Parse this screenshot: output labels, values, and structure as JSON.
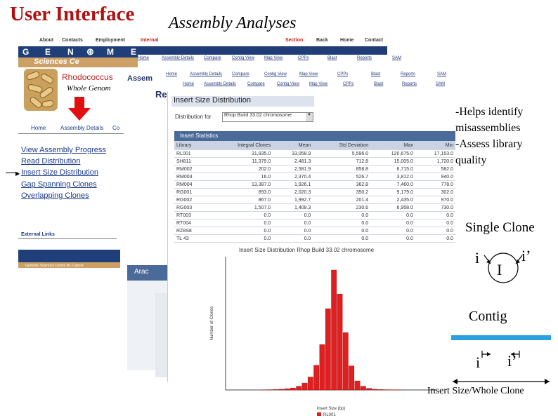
{
  "slide": {
    "title": "User Interface",
    "subtitle": "Assembly Analyses"
  },
  "back_site": {
    "top_nav": [
      "About",
      "Contacts",
      "Employment",
      "Internal",
      "Section:",
      "Back",
      "Home",
      "Contact"
    ],
    "logo_letters": [
      "G",
      "E",
      "N",
      "M",
      "E"
    ],
    "logo_sub": "Sciences  Ce",
    "organism": "Rhodococcus",
    "whole_genome": "Whole Genom",
    "sub_nav": [
      "Home",
      "Assembly Details",
      "Co"
    ],
    "links": [
      "View Assembly Progress",
      "Read Distribution",
      "Insert Size Distribution",
      "Gap Spanning Clones",
      "Overlapping Clones"
    ],
    "external_links": "External Links",
    "footer_text": "Genome Sciences Centre  BC Cancer",
    "mid_nav1": [
      "Home",
      "Assembly Details",
      "Compare",
      "Contig View",
      "Map View",
      "CPPs",
      "Blast",
      "Reports",
      "SAM"
    ],
    "mid_nav2": [
      "Home",
      "Assembly Details",
      "Compare",
      "Contig View",
      "Map View",
      "CPPs",
      "Blast",
      "Reports",
      "SAM"
    ],
    "mid_nav3": [
      "Home",
      "Assembly Details",
      "Compare",
      "Contig View",
      "Map View",
      "CPPs",
      "Blast",
      "Reports",
      "SAM"
    ],
    "assem_label": "Assem",
    "re_label": "Re",
    "lower_tab": "Arac"
  },
  "insert_size": {
    "heading": "Insert Size Distribution",
    "dist_label": "Distribution for",
    "dist_value": "Rhop Build 33.02 chromosome",
    "stats_heading": "Insert Statistics",
    "columns": [
      "Library",
      "Integral Clones",
      "Mean",
      "Std Deviation",
      "Max",
      "Min"
    ],
    "rows": [
      [
        "RL001",
        "31,935.0",
        "33,058.9",
        "5,596.0",
        "120,675.0",
        "17,153.0"
      ],
      [
        "SH811",
        "11,379.0",
        "2,481.3",
        "712.8",
        "15,005.0",
        "1,720.0"
      ],
      [
        "RM002",
        "202.0",
        "2,581.9",
        "858.8",
        "6,715.0",
        "582.0"
      ],
      [
        "RM003",
        "16.0",
        "2,370.4",
        "526.7",
        "3,812.0",
        "940.0"
      ],
      [
        "RM004",
        "13,387.0",
        "1,926.1",
        "362.8",
        "7,460.0",
        "778.0"
      ],
      [
        "RG001",
        "893.0",
        "2,020.3",
        "350.2",
        "9,179.0",
        "302.0"
      ],
      [
        "RG002",
        "867.0",
        "1,992.7",
        "201.4",
        "2,435.0",
        "970.0"
      ],
      [
        "RG003",
        "1,507.0",
        "1,408.3",
        "230.6",
        "6,958.0",
        "730.0"
      ],
      [
        "RT003",
        "0.0",
        "0.0",
        "0.0",
        "0.0",
        "0.0"
      ],
      [
        "RT004",
        "0.0",
        "0.0",
        "0.0",
        "0.0",
        "0.0"
      ],
      [
        "RZ8S8",
        "0.0",
        "0.0",
        "0.0",
        "0.0",
        "0.0"
      ],
      [
        "TL 43",
        "0.0",
        "0.0",
        "0.0",
        "0.0",
        "0.0"
      ]
    ]
  },
  "chart_data": {
    "type": "bar",
    "title": "Insert Size Distribution Rhop Build 33.02 chromosome",
    "xlabel": "Insert Size (bp)",
    "ylabel": "Number of Clones",
    "legend": [
      "RL001"
    ],
    "color": "#e02020",
    "values": [
      0,
      0,
      0,
      0,
      0,
      0,
      1,
      2,
      3,
      5,
      9,
      15,
      28,
      52,
      97,
      185,
      340,
      610,
      900,
      720,
      430,
      180,
      68,
      28,
      12,
      5,
      3,
      2,
      1,
      1,
      0,
      0,
      0,
      0,
      0,
      0
    ],
    "ylim": [
      0,
      1000
    ],
    "grid": false,
    "legend_position": "bottom"
  },
  "right_panel": {
    "notes": [
      "-Helps identify",
      "misassemblies",
      "-Assess library",
      "quality"
    ],
    "single_clone": "Single Clone",
    "i": "i",
    "i_prime": "i’",
    "I": "I",
    "contig": "Contig",
    "contig_i": "i",
    "contig_i_prime": "i’",
    "insert_caption": "Insert Size/Whole Clone"
  }
}
